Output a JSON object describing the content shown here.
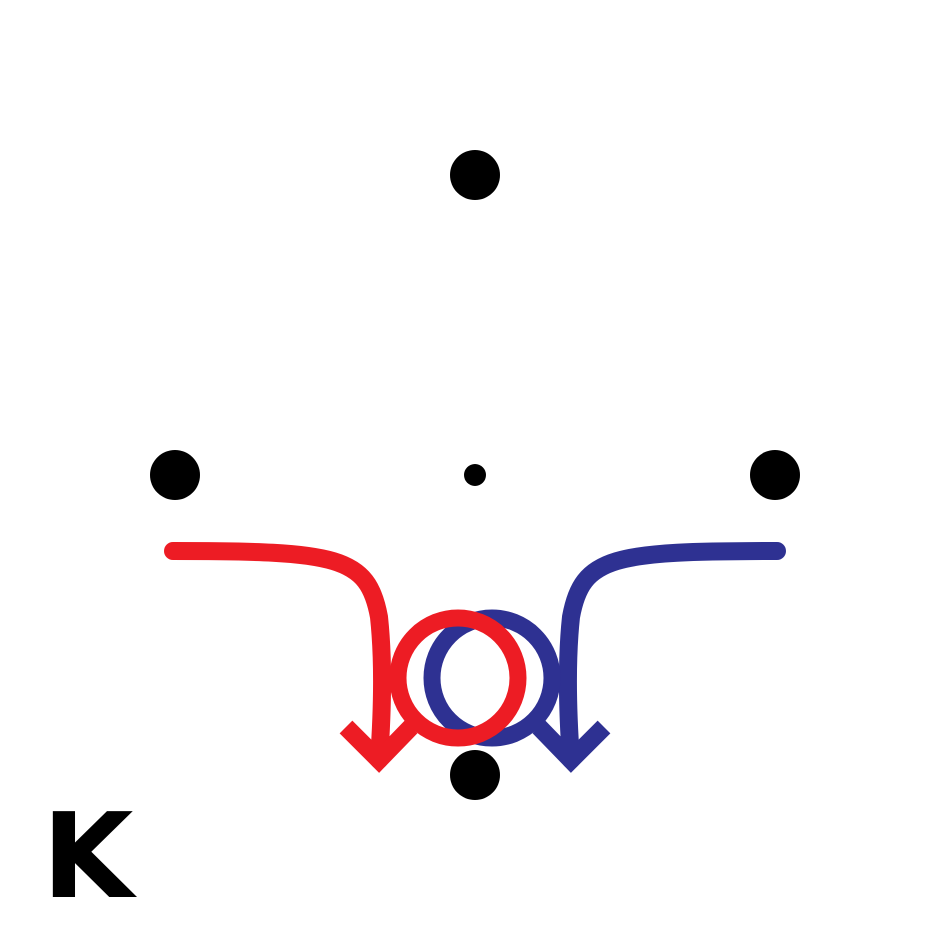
{
  "panel": {
    "label": "K"
  },
  "colors": {
    "background": "#ffffff",
    "dots": "#000000",
    "label": "#000000",
    "left_arrow": "#ed1c24",
    "right_arrow": "#2e3192"
  },
  "figure": {
    "dots": [
      {
        "name": "top-dot",
        "size": "large"
      },
      {
        "name": "left-dot",
        "size": "large"
      },
      {
        "name": "center-dot",
        "size": "small"
      },
      {
        "name": "right-dot",
        "size": "large"
      },
      {
        "name": "bottom-dot",
        "size": "large"
      }
    ],
    "arrows": [
      {
        "name": "red-arrow",
        "color": "#ed1c24",
        "loops": 1,
        "direction": "down"
      },
      {
        "name": "blue-arrow",
        "color": "#2e3192",
        "loops": 1,
        "direction": "down"
      }
    ]
  }
}
